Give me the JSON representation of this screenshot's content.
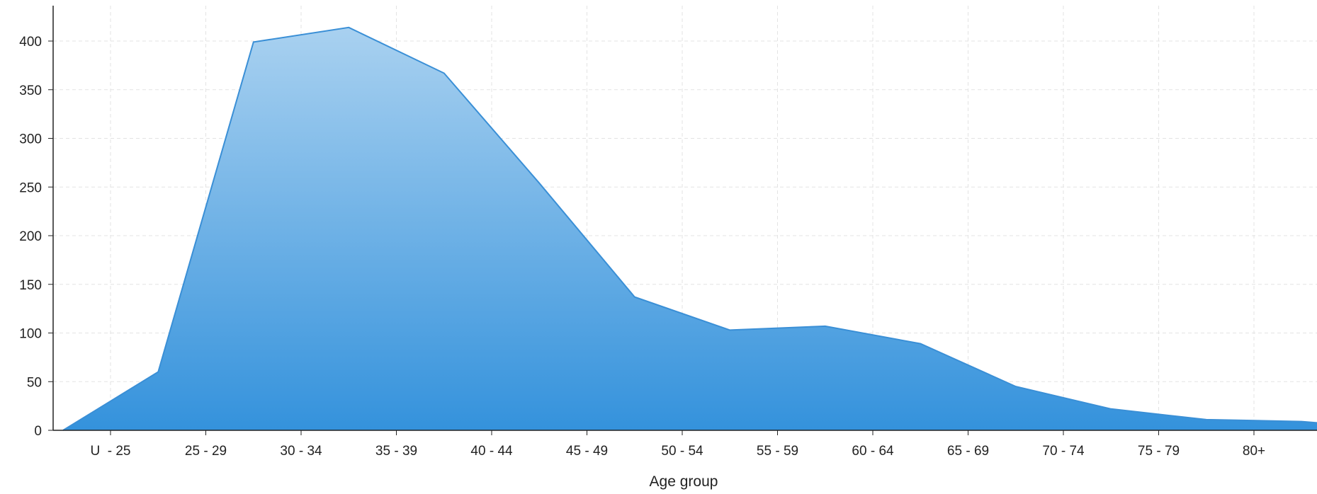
{
  "chart_data": {
    "type": "area",
    "xlabel": "Age group",
    "ylabel": "",
    "categories": [
      "U  - 25",
      "25 - 29",
      "30 - 34",
      "35 - 39",
      "40 - 44",
      "45 - 49",
      "50 - 54",
      "55 - 59",
      "60 - 64",
      "65 - 69",
      "70 - 74",
      "75 - 79",
      "80+"
    ],
    "x": [
      0,
      0.5,
      1.5,
      2.5,
      3.5,
      4.5,
      5.5,
      6.5,
      7.5,
      8.5,
      9.5,
      10.5,
      11.5,
      12.5,
      13.6
    ],
    "values": [
      0,
      60,
      399,
      414,
      367,
      254,
      137,
      103,
      107,
      89,
      45,
      22,
      11,
      9,
      0
    ],
    "ylim": [
      0,
      435
    ],
    "yticks": [
      "0",
      "50",
      "100",
      "150",
      "200",
      "250",
      "300",
      "350",
      "400"
    ],
    "grid": true,
    "colors": {
      "line": "#3a8fd6",
      "fill_top": "#a9d1f0",
      "fill_bottom": "#3492dc",
      "grid": "#e3e3e3",
      "axis": "#222222"
    }
  }
}
